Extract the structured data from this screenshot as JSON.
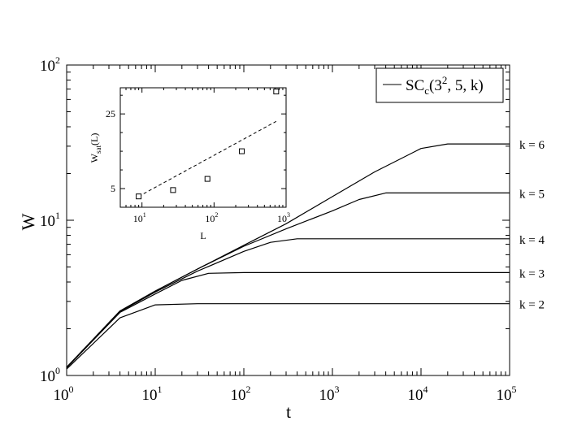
{
  "chart_data": [
    {
      "type": "line",
      "xlabel": "t",
      "ylabel": "W",
      "xscale": "log",
      "yscale": "log",
      "xlim": [
        1,
        100000
      ],
      "ylim": [
        1,
        100
      ],
      "x_ticks": [
        "10^0",
        "10^1",
        "10^2",
        "10^3",
        "10^4",
        "10^5"
      ],
      "y_ticks": [
        "10^0",
        "10^1",
        "10^2"
      ],
      "legend": {
        "placement": "top-right",
        "entries": [
          "SC_c(3^2, 5, k)"
        ],
        "text_main": "SC",
        "text_sub": "c",
        "text_mid": "(3",
        "text_sup": "2",
        "text_tail": ", 5, k)"
      },
      "grid": false,
      "series": [
        {
          "label": "k = 2",
          "x": [
            1,
            4,
            10,
            30,
            100,
            1000,
            10000,
            100000
          ],
          "y": [
            1.1,
            2.35,
            2.85,
            2.9,
            2.9,
            2.9,
            2.9,
            2.9
          ]
        },
        {
          "label": "k = 3",
          "x": [
            1,
            4,
            10,
            20,
            40,
            100,
            1000,
            10000,
            100000
          ],
          "y": [
            1.12,
            2.55,
            3.35,
            4.1,
            4.55,
            4.6,
            4.6,
            4.6,
            4.6
          ]
        },
        {
          "label": "k = 4",
          "x": [
            1,
            4,
            10,
            30,
            100,
            200,
            400,
            1000,
            10000,
            100000
          ],
          "y": [
            1.13,
            2.58,
            3.45,
            4.7,
            6.3,
            7.2,
            7.6,
            7.6,
            7.6,
            7.6
          ]
        },
        {
          "label": "k = 5",
          "x": [
            1,
            4,
            10,
            30,
            100,
            300,
            1000,
            2000,
            4000,
            10000,
            100000
          ],
          "y": [
            1.13,
            2.6,
            3.5,
            4.85,
            6.8,
            8.8,
            11.5,
            13.6,
            15.0,
            15.0,
            15.0
          ]
        },
        {
          "label": "k = 6",
          "x": [
            1,
            4,
            10,
            30,
            100,
            300,
            1000,
            3000,
            10000,
            20000,
            100000
          ],
          "y": [
            1.13,
            2.6,
            3.5,
            4.85,
            6.9,
            9.5,
            14.2,
            20.5,
            29.0,
            31.0,
            31.0
          ]
        }
      ]
    },
    {
      "type": "scatter",
      "xlabel": "L",
      "ylabel_main": "W",
      "ylabel_sub": "sat",
      "ylabel_tail": "(L)",
      "xscale": "log",
      "xlim": [
        5,
        1000
      ],
      "ylim": [
        0,
        32
      ],
      "x_ticks": [
        "10^1",
        "10^2",
        "10^3"
      ],
      "y_ticks": [
        "5",
        "25"
      ],
      "y_tick_values": [
        5,
        25
      ],
      "grid": false,
      "series": [
        {
          "name": "data",
          "marker": "open-square",
          "x": [
            9,
            27,
            81,
            243,
            729
          ],
          "y": [
            2.9,
            4.6,
            7.6,
            15.0,
            31.0
          ]
        },
        {
          "name": "fit",
          "style": "dashed",
          "x": [
            9,
            729
          ],
          "y": [
            2.9,
            23.0
          ]
        }
      ]
    }
  ]
}
